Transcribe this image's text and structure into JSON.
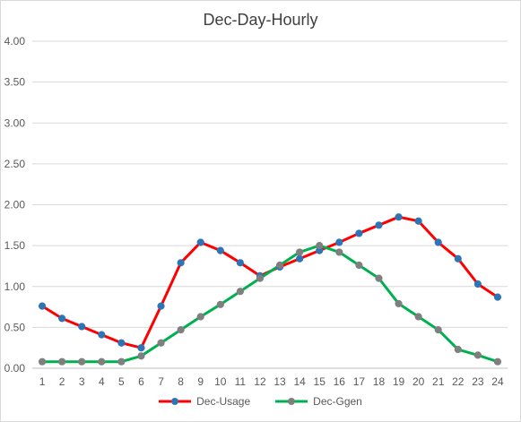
{
  "chart_data": {
    "type": "line",
    "title": "Dec-Day-Hourly",
    "xlabel": "",
    "ylabel": "",
    "categories": [
      "1",
      "2",
      "3",
      "4",
      "5",
      "6",
      "7",
      "8",
      "9",
      "10",
      "11",
      "12",
      "13",
      "14",
      "15",
      "16",
      "17",
      "18",
      "19",
      "20",
      "21",
      "22",
      "23",
      "24"
    ],
    "ylim": [
      0,
      4
    ],
    "yticks": [
      "0.00",
      "0.50",
      "1.00",
      "1.50",
      "2.00",
      "2.50",
      "3.00",
      "3.50",
      "4.00"
    ],
    "grid": true,
    "legend_position": "bottom",
    "series": [
      {
        "name": "Dec-Usage",
        "line_color": "#ff0000",
        "marker_color": "#2e75b6",
        "values": [
          0.76,
          0.61,
          0.51,
          0.41,
          0.31,
          0.25,
          0.76,
          1.29,
          1.54,
          1.44,
          1.29,
          1.13,
          1.24,
          1.34,
          1.44,
          1.54,
          1.65,
          1.75,
          1.85,
          1.8,
          1.54,
          1.34,
          1.03,
          0.87
        ]
      },
      {
        "name": "Dec-Ggen",
        "line_color": "#00b050",
        "marker_color": "#7f7f7f",
        "values": [
          0.08,
          0.08,
          0.08,
          0.08,
          0.08,
          0.15,
          0.31,
          0.47,
          0.63,
          0.78,
          0.94,
          1.1,
          1.26,
          1.42,
          1.5,
          1.42,
          1.26,
          1.1,
          0.79,
          0.63,
          0.47,
          0.23,
          0.16,
          0.08
        ]
      }
    ]
  }
}
